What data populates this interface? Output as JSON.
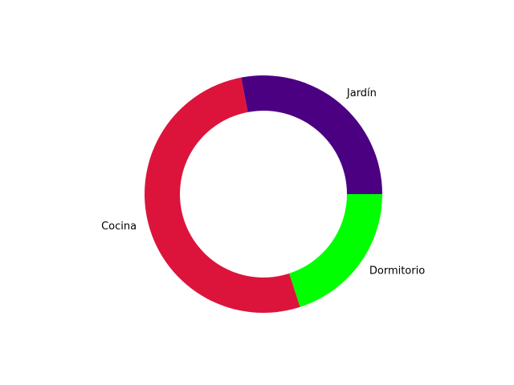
{
  "chart_data": {
    "type": "pie",
    "variant": "donut",
    "title": "",
    "categories": [
      "Jardín",
      "Cocina",
      "Dormitorio"
    ],
    "values": [
      28,
      52,
      20
    ],
    "colors": [
      "#4B0082",
      "#DC143C",
      "#00FF00"
    ],
    "start_angle_deg": 0,
    "direction": "counterclockwise",
    "legend": "none",
    "grid": false
  }
}
